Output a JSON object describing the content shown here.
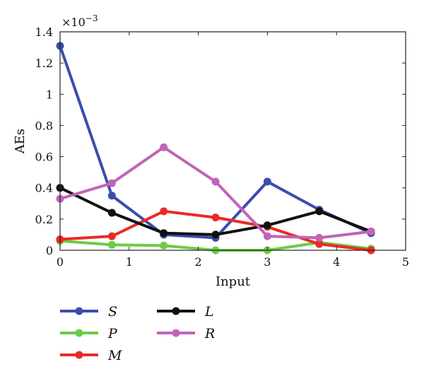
{
  "chart_data": {
    "type": "line",
    "xlabel": "Input",
    "ylabel": "AEs",
    "y_scale_factor": "×10",
    "y_scale_exponent": "−3",
    "xlim": [
      0,
      5
    ],
    "ylim": [
      0,
      1.4
    ],
    "xticks": [
      0,
      1,
      2,
      3,
      4,
      5
    ],
    "xtick_labels": [
      "0",
      "1",
      "2",
      "3",
      "4",
      "5"
    ],
    "yticks": [
      0,
      0.2,
      0.4,
      0.6,
      0.8,
      1.0,
      1.2,
      1.4
    ],
    "ytick_labels": [
      "0",
      "0.2",
      "0.4",
      "0.6",
      "0.8",
      "1",
      "1.2",
      "1.4"
    ],
    "grid": false,
    "legend_position": "bottom-left",
    "x": [
      0,
      0.75,
      1.5,
      2.25,
      3.0,
      3.75,
      4.5
    ],
    "series": [
      {
        "name": "S",
        "color": "#3b4dab",
        "values": [
          1.31,
          0.35,
          0.1,
          0.08,
          0.44,
          0.26,
          0.11
        ]
      },
      {
        "name": "P",
        "color": "#6ccc45",
        "values": [
          0.06,
          0.035,
          0.03,
          0.0,
          0.0,
          0.05,
          0.01
        ]
      },
      {
        "name": "M",
        "color": "#ea2a27",
        "values": [
          0.07,
          0.09,
          0.25,
          0.21,
          0.15,
          0.04,
          0.0
        ]
      },
      {
        "name": "L",
        "color": "#111111",
        "values": [
          0.4,
          0.24,
          0.11,
          0.1,
          0.16,
          0.25,
          0.12
        ]
      },
      {
        "name": "R",
        "color": "#c064b8",
        "values": [
          0.33,
          0.43,
          0.66,
          0.44,
          0.09,
          0.08,
          0.12
        ]
      }
    ]
  }
}
